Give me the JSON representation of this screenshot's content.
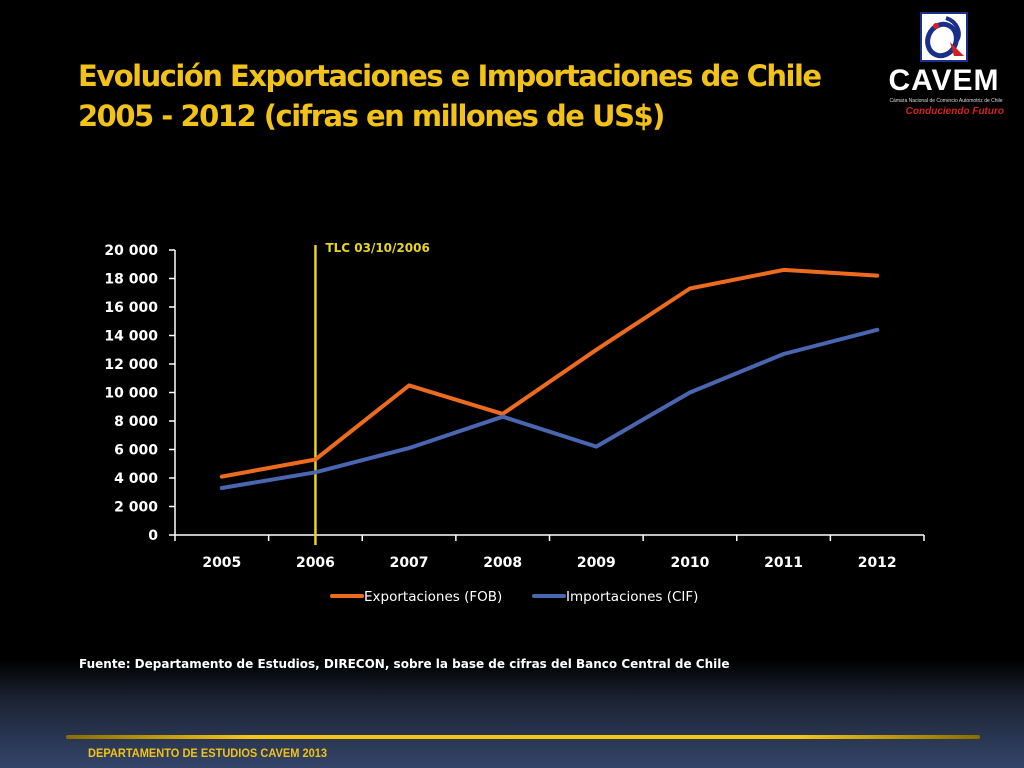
{
  "slide": {
    "title_line1": "Evolución Exportaciones e Importaciones de Chile",
    "title_line2": "2005 - 2012 (cifras en millones de US$)",
    "source": "Fuente: Departamento de Estudios, DIRECON, sobre la base de cifras del Banco Central de Chile",
    "footer": "DEPARTAMENTO DE ESTUDIOS CAVEM 2013"
  },
  "logo": {
    "name": "CAVEM",
    "subtitle": "Cámara Nacional de Comercio Automotriz de Chile",
    "tagline": "Conduciendo Futuro",
    "icon": "cavem-emblem-icon"
  },
  "colors": {
    "title": "#f2c316",
    "exports": "#ec6b1e",
    "imports": "#4a66b0",
    "marker_line": "#e8d51c"
  },
  "chart_data": {
    "type": "line",
    "categories": [
      "2005",
      "2006",
      "2007",
      "2008",
      "2009",
      "2010",
      "2011",
      "2012"
    ],
    "series": [
      {
        "name": "Exportaciones (FOB)",
        "values": [
          4100,
          5300,
          10500,
          8500,
          13000,
          17300,
          18600,
          18200
        ]
      },
      {
        "name": "Importaciones (CIF)",
        "values": [
          3300,
          4400,
          6100,
          8300,
          6200,
          10000,
          12700,
          14400
        ]
      }
    ],
    "ylim": [
      0,
      20000
    ],
    "yticks": [
      0,
      2000,
      4000,
      6000,
      8000,
      10000,
      12000,
      14000,
      16000,
      18000,
      20000
    ],
    "ytick_labels": [
      "0",
      "2 000",
      "4 000",
      "6 000",
      "8 000",
      "10 000",
      "12 000",
      "14 000",
      "16 000",
      "18 000",
      "20 000"
    ],
    "annotation": {
      "label": "TLC 03/10/2006",
      "x": "2006"
    },
    "grid": false,
    "legend": "bottom"
  }
}
